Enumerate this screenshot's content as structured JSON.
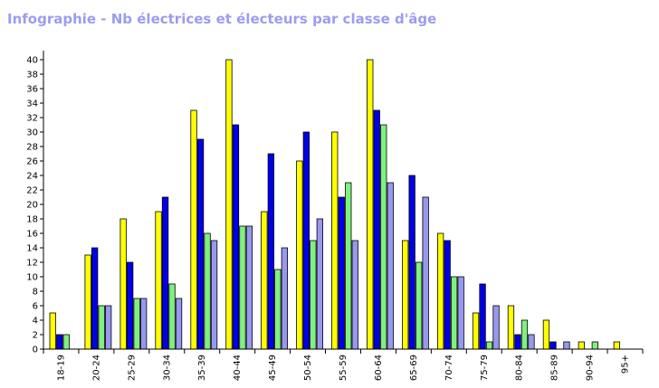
{
  "page": {
    "title": "Infographie - Nb électrices et électeurs par classe d'âge"
  },
  "chart_data": {
    "type": "bar",
    "title": "Infographie - Nb électrices et électeurs par classe d'âge",
    "xlabel": "",
    "ylabel": "",
    "categories": [
      "18-19",
      "20-24",
      "25-29",
      "30-34",
      "35-39",
      "40-44",
      "45-49",
      "50-54",
      "55-59",
      "60-64",
      "65-69",
      "70-74",
      "75-79",
      "80-84",
      "85-89",
      "90-94",
      "95+"
    ],
    "ylim": [
      0,
      41
    ],
    "yticks": [
      0,
      2,
      4,
      6,
      8,
      10,
      12,
      14,
      16,
      18,
      20,
      22,
      24,
      26,
      28,
      30,
      32,
      34,
      36,
      38,
      40
    ],
    "grid": false,
    "legend": "none",
    "series": [
      {
        "color": "#ffff00",
        "values": [
          5,
          13,
          18,
          19,
          33,
          40,
          19,
          26,
          30,
          40,
          15,
          16,
          5,
          6,
          4,
          1,
          1
        ]
      },
      {
        "color": "#0000e6",
        "values": [
          2,
          14,
          12,
          21,
          29,
          31,
          27,
          30,
          21,
          33,
          24,
          15,
          9,
          2,
          1,
          0,
          0
        ]
      },
      {
        "color": "#80f080",
        "values": [
          2,
          6,
          7,
          9,
          16,
          17,
          11,
          15,
          23,
          31,
          12,
          10,
          1,
          4,
          0,
          1,
          0
        ]
      },
      {
        "color": "#9898f0",
        "values": [
          0,
          6,
          7,
          7,
          15,
          17,
          14,
          18,
          15,
          23,
          21,
          10,
          6,
          2,
          1,
          0,
          0
        ]
      }
    ]
  }
}
